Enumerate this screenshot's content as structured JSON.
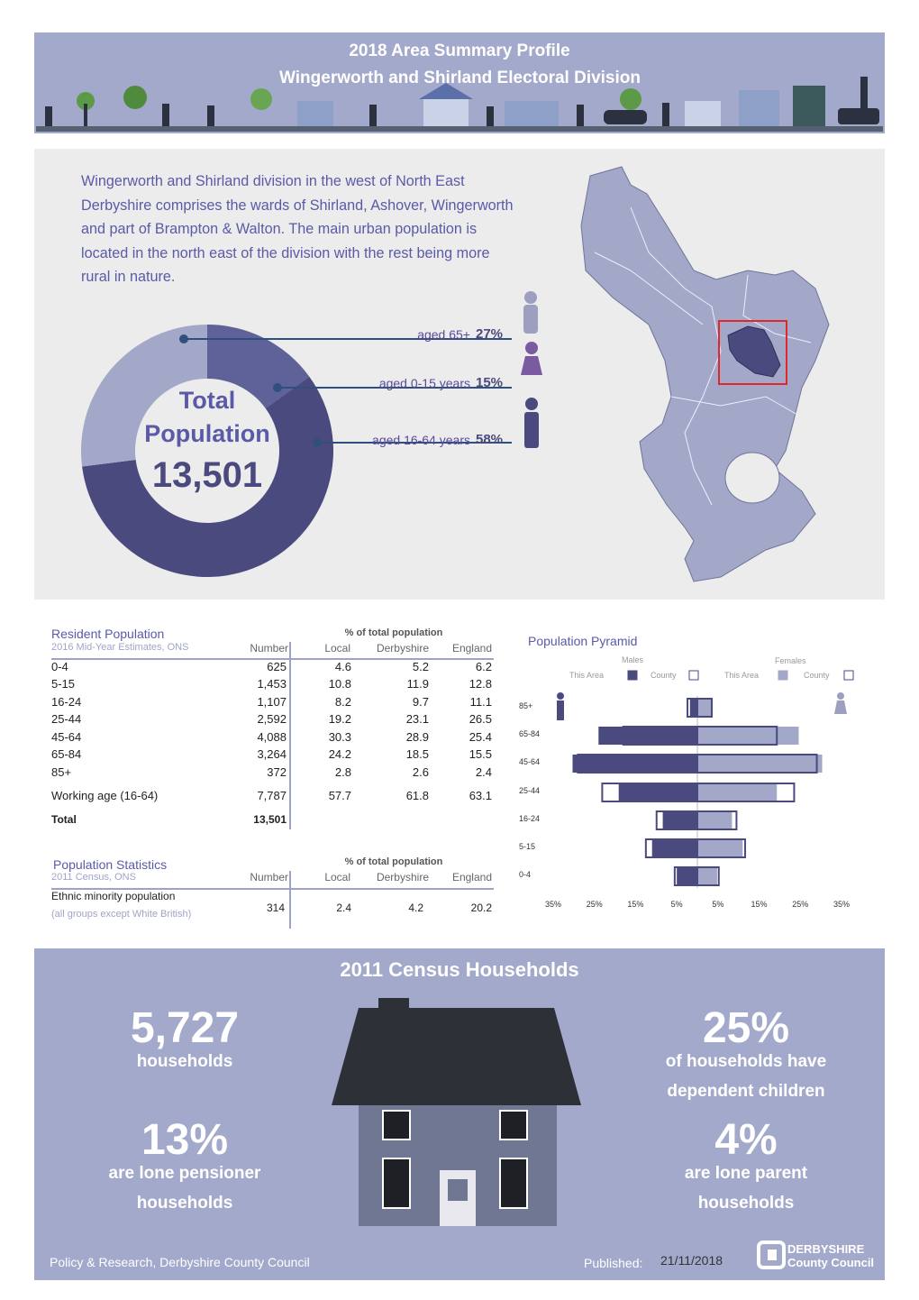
{
  "header": {
    "title": "2018 Area Summary Profile",
    "subtitle": "Wingerworth and Shirland Electoral Division"
  },
  "intro": {
    "text": "Wingerworth and Shirland division in the west of North East Derbyshire comprises the wards of Shirland, Ashover, Wingerworth and part of Brampton & Walton. The main urban population is located in the north east of the division with the rest being more rural in nature."
  },
  "population_chart": {
    "type": "donut",
    "center_label": [
      "Total",
      "Population"
    ],
    "total": {
      "value": 13501,
      "label": "13,501"
    },
    "categories": [
      "aged 0-15 years",
      "aged 16-64 years",
      "aged 65+"
    ],
    "values": [
      15,
      58,
      27
    ],
    "value_labels": [
      "15%",
      "58%",
      "27%"
    ],
    "colors": [
      "#5f6298",
      "#4b4a7e",
      "#a3a8c9"
    ]
  },
  "resident_table": {
    "title": "Resident Population",
    "source": "2016 Mid-Year Estimates, ONS",
    "group_header": "% of total population",
    "columns": [
      "Number",
      "Local",
      "Derbyshire",
      "England"
    ],
    "rows": [
      [
        "0-4",
        "625",
        "4.6",
        "5.2",
        "6.2"
      ],
      [
        "5-15",
        "1,453",
        "10.8",
        "11.9",
        "12.8"
      ],
      [
        "16-24",
        "1,107",
        "8.2",
        "9.7",
        "11.1"
      ],
      [
        "25-44",
        "2,592",
        "19.2",
        "23.1",
        "26.5"
      ],
      [
        "45-64",
        "4,088",
        "30.3",
        "28.9",
        "25.4"
      ],
      [
        "65-84",
        "3,264",
        "24.2",
        "18.5",
        "15.5"
      ],
      [
        "85+",
        "372",
        "2.8",
        "2.6",
        "2.4"
      ],
      [
        "Working age (16-64)",
        "7,787",
        "57.7",
        "61.8",
        "63.1"
      ],
      [
        "Total",
        "13,501"
      ]
    ]
  },
  "stats_table": {
    "title": "Population Statistics",
    "source": "2011 Census, ONS",
    "group_header": "% of total population",
    "columns": [
      "Number",
      "Local",
      "Derbyshire",
      "England"
    ],
    "rows": [
      {
        "label": "Ethnic minority population",
        "note": "(all groups except White British)",
        "cells": [
          "314",
          "2.4",
          "4.2",
          "20.2"
        ]
      }
    ]
  },
  "pyramid": {
    "type": "pyramid",
    "title": "Population Pyramid",
    "male_label": "Males",
    "female_label": "Females",
    "categories": [
      "85+",
      "65-84",
      "45-64",
      "25-44",
      "16-24",
      "5-15",
      "0-4"
    ],
    "series": [
      {
        "name": "This Area",
        "side": "male",
        "style": "fill",
        "color": "#4b4a7e",
        "values": [
          1.8,
          24.0,
          30.3,
          19.1,
          8.4,
          11.0,
          5.0
        ]
      },
      {
        "name": "County",
        "side": "male",
        "style": "outline",
        "color": "#4b4a7e",
        "values": [
          2.4,
          18.0,
          29.0,
          23.1,
          9.9,
          12.5,
          5.5
        ]
      },
      {
        "name": "This Area",
        "side": "female",
        "style": "fill",
        "color": "#a3a8c9",
        "values": [
          3.4,
          24.6,
          30.3,
          19.3,
          8.4,
          11.0,
          4.8
        ]
      },
      {
        "name": "County",
        "side": "female",
        "style": "outline",
        "color": "#4b4a7e",
        "values": [
          3.5,
          19.3,
          29.0,
          23.5,
          9.5,
          11.6,
          5.2
        ]
      }
    ],
    "xlim": [
      0,
      35
    ],
    "male_ticks": [
      {
        "value": 35,
        "label": "35%"
      },
      {
        "value": 25,
        "label": "25%"
      },
      {
        "value": 15,
        "label": "15%"
      },
      {
        "value": 5,
        "label": "5%"
      }
    ],
    "female_ticks": [
      {
        "value": 5,
        "label": "5%"
      },
      {
        "value": 15,
        "label": "15%"
      },
      {
        "value": 25,
        "label": "25%"
      },
      {
        "value": 35,
        "label": "35%"
      }
    ]
  },
  "households": {
    "title": "2011 Census Households",
    "stats": [
      {
        "value": "5,727",
        "lines": [
          "households"
        ]
      },
      {
        "value": "25%",
        "lines": [
          "of households have",
          "dependent children"
        ]
      },
      {
        "value": "13%",
        "lines": [
          "are lone pensioner",
          "households"
        ]
      },
      {
        "value": "4%",
        "lines": [
          "are lone parent",
          "households"
        ]
      }
    ]
  },
  "footer": {
    "credit": "Policy & Research, Derbyshire County Council",
    "published_label": "Published:",
    "published_date": "21/11/2018",
    "logo": [
      "DERBYSHIRE",
      "County Council"
    ]
  }
}
